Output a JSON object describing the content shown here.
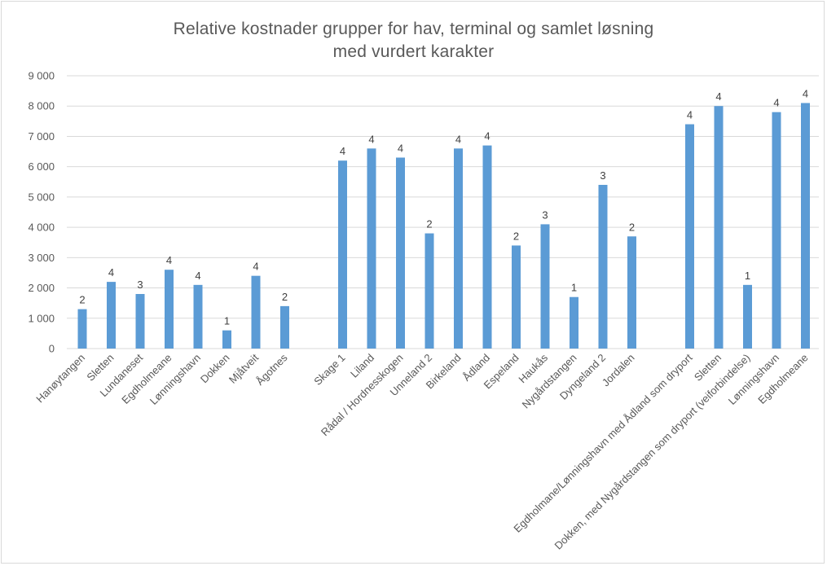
{
  "chart_data": {
    "type": "bar",
    "title_line1": "Relative kostnader grupper for hav, terminal og samlet løsning",
    "title_line2": "med vurdert karakter",
    "ylim": [
      0,
      9000
    ],
    "yticks": [
      "0",
      "1 000",
      "2 000",
      "3 000",
      "4 000",
      "5 000",
      "6 000",
      "7 000",
      "8 000",
      "9 000"
    ],
    "grid": true,
    "bar_color": "#5b9bd5",
    "groups": [
      {
        "categories": [
          "Hanøytangen",
          "Sletten",
          "Lundaneset",
          "Egdholmeane",
          "Lønningshavn",
          "Dokken",
          "Mjåtveit",
          "Ågotnes"
        ],
        "values": [
          1300,
          2200,
          1800,
          2600,
          2100,
          600,
          2400,
          1400
        ],
        "labels": [
          "2",
          "4",
          "3",
          "4",
          "4",
          "1",
          "4",
          "2"
        ]
      },
      {
        "categories": [
          "Skage 1",
          "Liland",
          "Rådal / Hordnesskogen",
          "Unneland 2",
          "Birkeland",
          "Ådland",
          "Espeland",
          "Haukås",
          "Nygårdstangen",
          "Dyngeland 2",
          "Jordalen"
        ],
        "values": [
          6200,
          6600,
          6300,
          3800,
          6600,
          6700,
          3400,
          4100,
          1700,
          5400,
          3700
        ],
        "labels": [
          "4",
          "4",
          "4",
          "2",
          "4",
          "4",
          "2",
          "3",
          "1",
          "3",
          "2"
        ]
      },
      {
        "categories": [
          "Egdholmane/Lønningshavn med Ådland som dryport",
          "Sletten",
          "Dokken, med Nygårdstangen som dryport (veiforbindelse)",
          "Lønningshavn",
          "Egdholmeane"
        ],
        "values": [
          7400,
          8000,
          2100,
          7800,
          8100
        ],
        "labels": [
          "4",
          "4",
          "1",
          "4",
          "4"
        ]
      }
    ]
  }
}
